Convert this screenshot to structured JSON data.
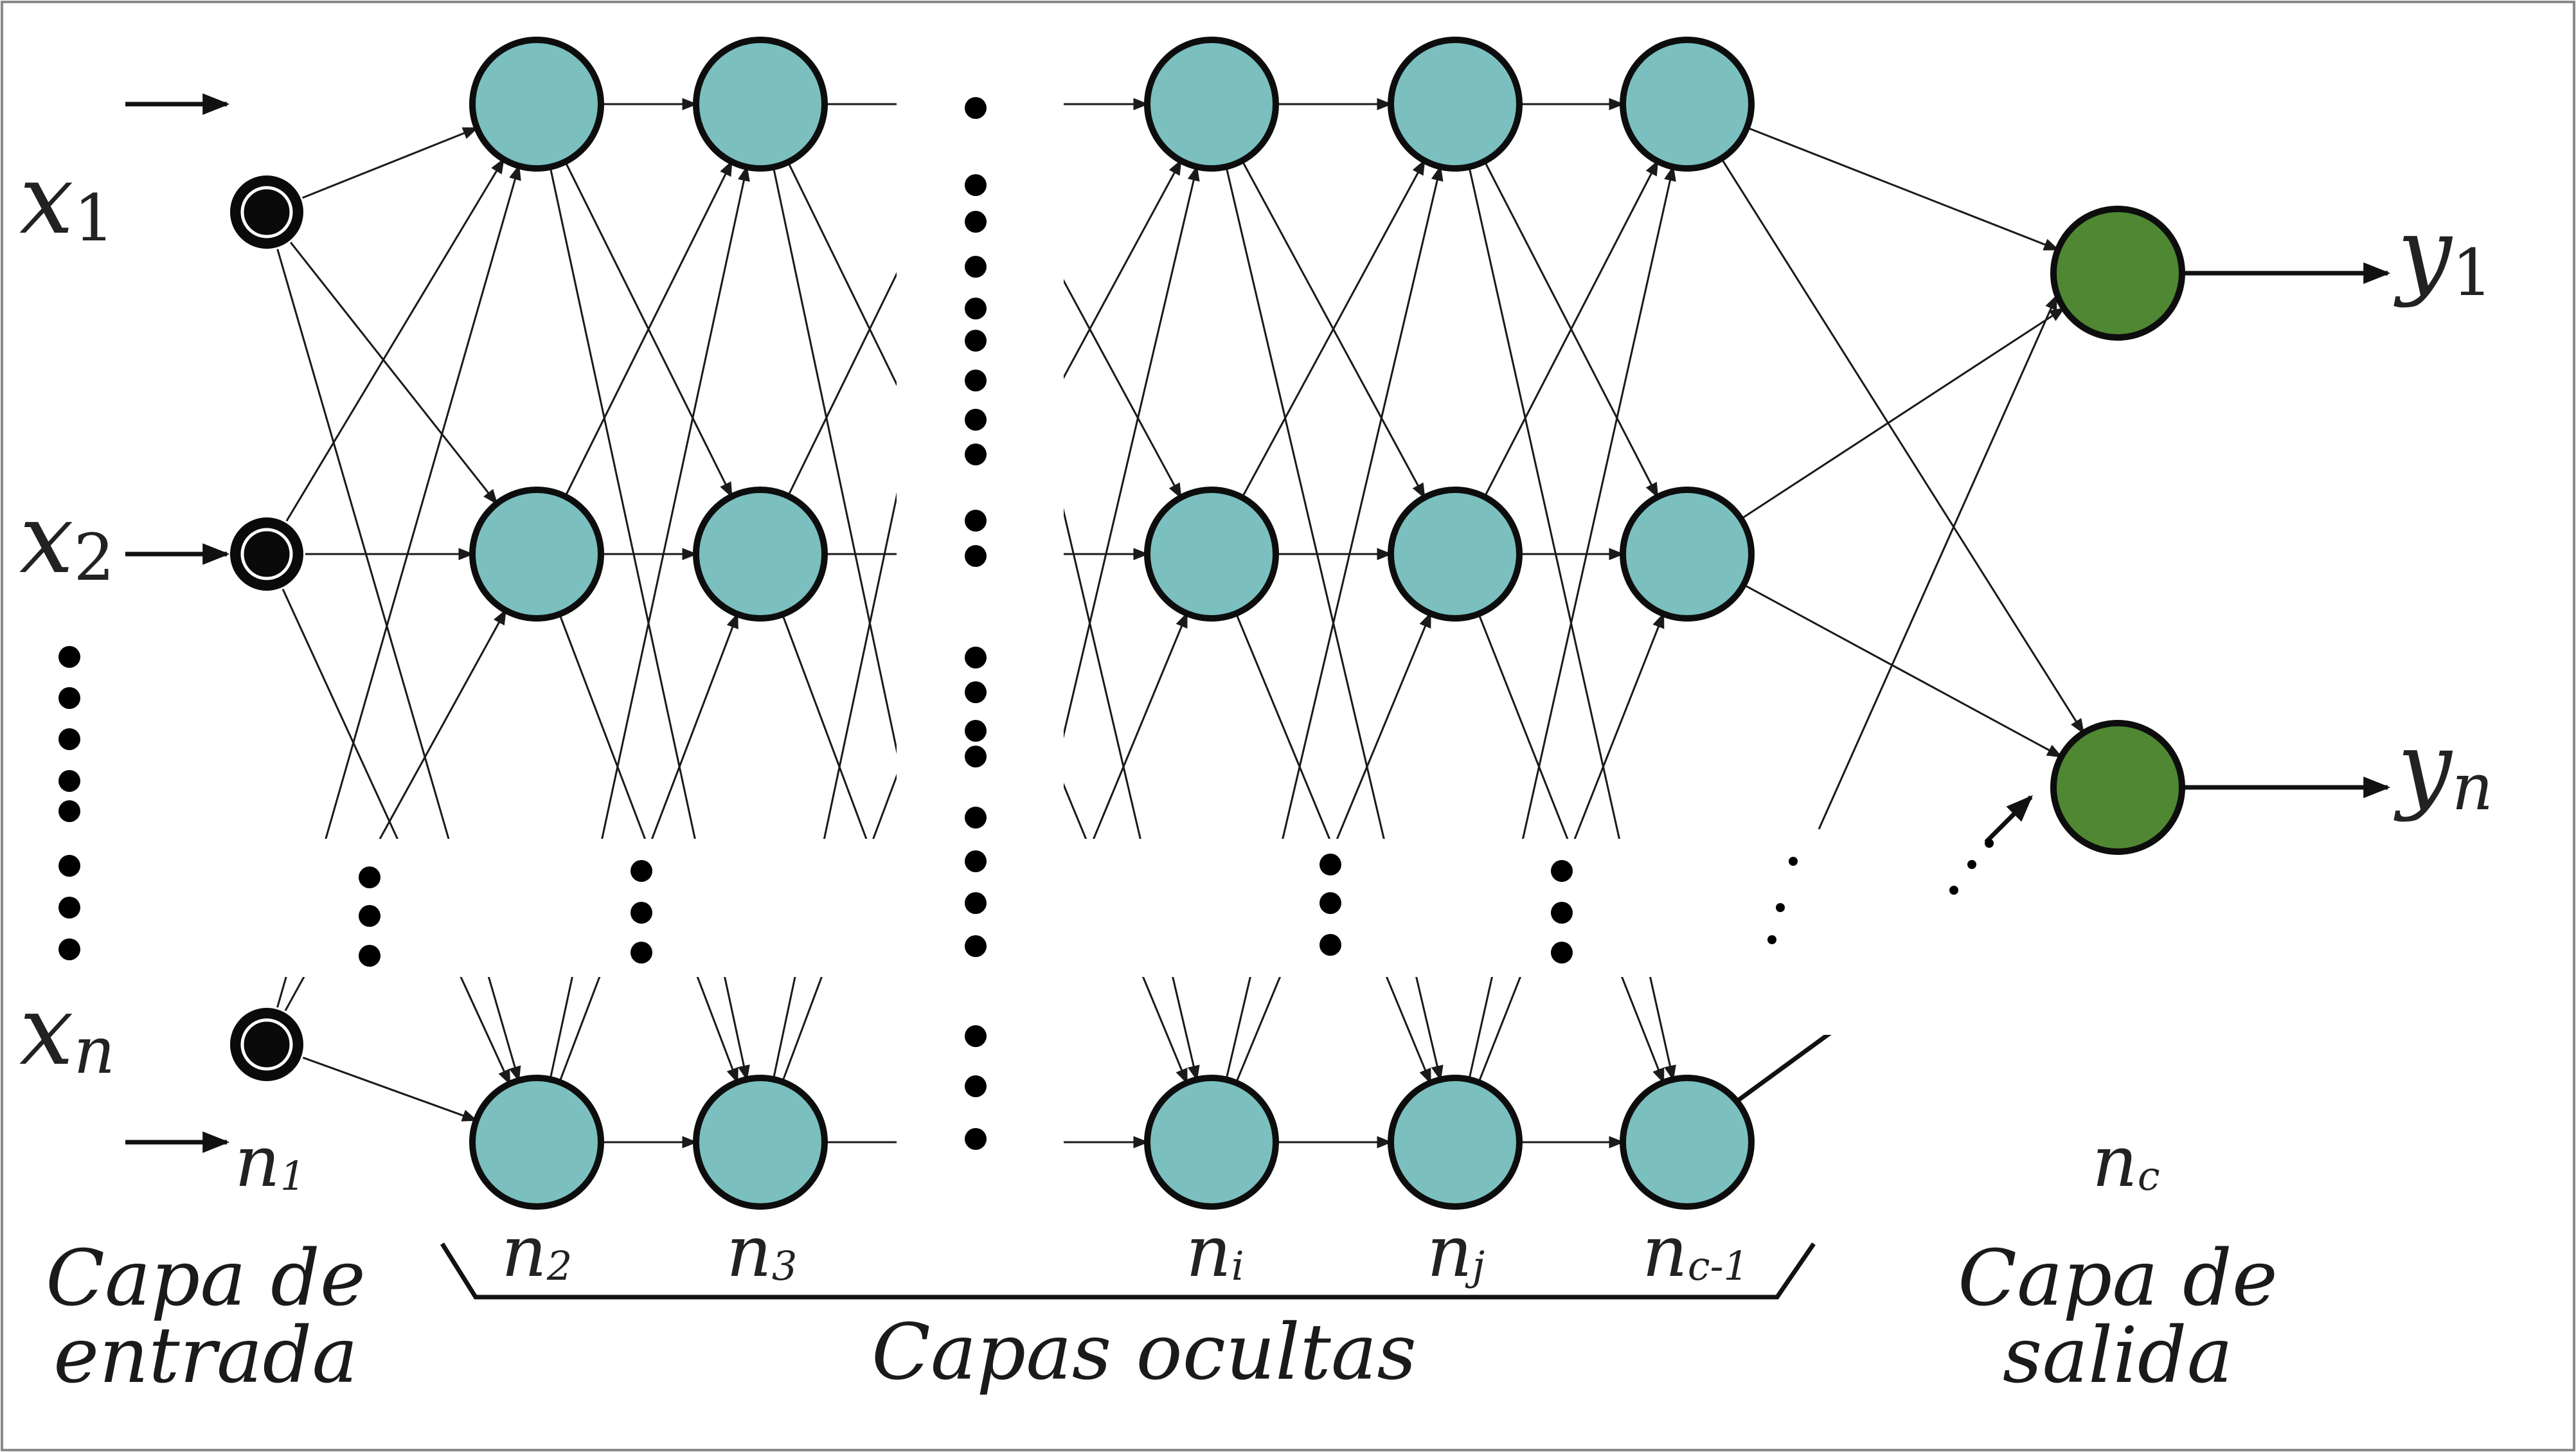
{
  "colors": {
    "hidden_node": "#7bbfbf",
    "output_node": "#4f8732",
    "input_node": "#0a0a0a"
  },
  "inputs": [
    {
      "var": "x",
      "sub": "1"
    },
    {
      "var": "x",
      "sub": "2"
    },
    {
      "var": "x",
      "sub": "n"
    }
  ],
  "outputs": [
    {
      "var": "y",
      "sub": "1"
    },
    {
      "var": "y",
      "sub": "n"
    }
  ],
  "layer_sizes": {
    "input": {
      "var": "n",
      "sub": "1"
    },
    "hidden": [
      {
        "var": "n",
        "sub": "2"
      },
      {
        "var": "n",
        "sub": "3"
      },
      {
        "var": "n",
        "sub": "i"
      },
      {
        "var": "n",
        "sub": "j"
      },
      {
        "var": "n",
        "sub": "c-1"
      }
    ],
    "output": {
      "var": "n",
      "sub": "c"
    }
  },
  "captions": {
    "input_layer": [
      "Capa de",
      "entrada"
    ],
    "hidden_layers": "Capas ocultas",
    "output_layer": [
      "Capa de",
      "salida"
    ]
  }
}
